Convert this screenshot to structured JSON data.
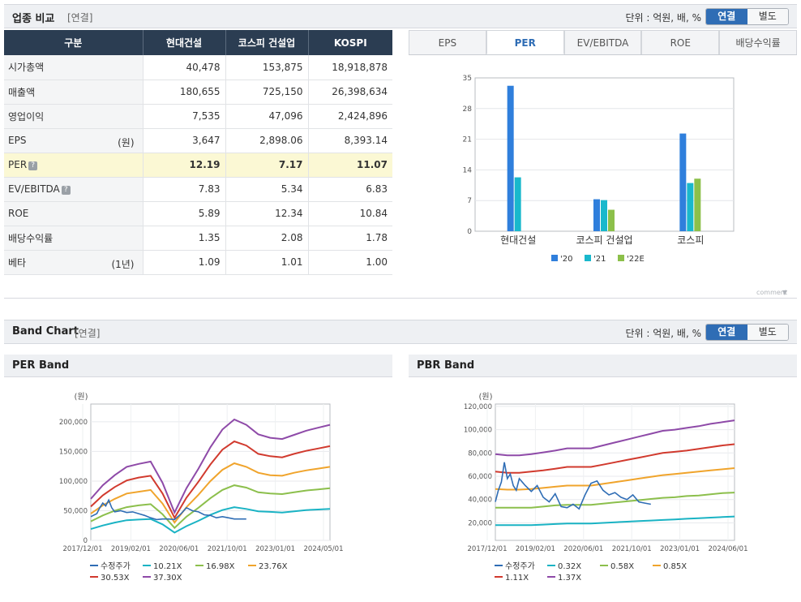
{
  "industry_compare": {
    "title": "업종 비교",
    "tag": "[연결]",
    "unit": "단위 : 억원, 배, %",
    "toggle": [
      "연결",
      "별도"
    ],
    "columns": [
      "구분",
      "현대건설",
      "코스피 건설업",
      "KOSPI"
    ],
    "rows": [
      {
        "label": "시가총액",
        "sub": "",
        "values": [
          "40,478",
          "153,875",
          "18,918,878"
        ]
      },
      {
        "label": "매출액",
        "sub": "",
        "values": [
          "180,655",
          "725,150",
          "26,398,634"
        ]
      },
      {
        "label": "영업이익",
        "sub": "",
        "values": [
          "7,535",
          "47,096",
          "2,424,896"
        ]
      },
      {
        "label": "EPS",
        "sub": "(원)",
        "values": [
          "3,647",
          "2,898.06",
          "8,393.14"
        ]
      },
      {
        "label": "PER",
        "sub": "",
        "values": [
          "12.19",
          "7.17",
          "11.07"
        ]
      },
      {
        "label": "EV/EBITDA",
        "sub": "",
        "values": [
          "7.83",
          "5.34",
          "6.83"
        ]
      },
      {
        "label": "ROE",
        "sub": "",
        "values": [
          "5.89",
          "12.34",
          "10.84"
        ]
      },
      {
        "label": "배당수익률",
        "sub": "",
        "values": [
          "1.35",
          "2.08",
          "1.78"
        ]
      },
      {
        "label": "베타",
        "sub": "(1년)",
        "values": [
          "1.09",
          "1.01",
          "1.00"
        ]
      }
    ],
    "help_icon": "question-icon",
    "tabs": [
      "EPS",
      "PER",
      "EV/EBITDA",
      "ROE",
      "배당수익률"
    ],
    "active_tab": "PER"
  },
  "comment_label": "comment",
  "band": {
    "title": "Band Chart",
    "tag": "[연결]",
    "unit": "단위 : 억원, 배, %",
    "toggle": [
      "연결",
      "별도"
    ],
    "per_title": "PER Band",
    "pbr_title": "PBR Band"
  },
  "colors": {
    "header_dark": "#2b3d52",
    "accent": "#2f6db5",
    "highlight_row": "#fbf8d4",
    "series": [
      "#2f7fdc",
      "#19b8cc",
      "#8cc04a"
    ],
    "band_lines": [
      "#2f6db5",
      "#1ab3c4",
      "#8cbf4c",
      "#f0a42c",
      "#d13a2e",
      "#8e4aa8"
    ]
  },
  "chart_data": [
    {
      "type": "bar",
      "categories": [
        "현대건설",
        "코스피 건설업",
        "코스피"
      ],
      "series": [
        {
          "name": "'20",
          "values": [
            33.2,
            7.3,
            22.3
          ]
        },
        {
          "name": "'21",
          "values": [
            12.3,
            7.1,
            11.0
          ]
        },
        {
          "name": "'22E",
          "values": [
            null,
            4.9,
            12.0
          ]
        }
      ],
      "yticks": [
        0,
        7,
        14,
        21,
        28,
        35
      ],
      "ylim": [
        0,
        35
      ],
      "legend": "bottom"
    },
    {
      "type": "line",
      "title": "PER Band",
      "ylabel": "(원)",
      "yticks": [
        "0",
        "50,000",
        "100,000",
        "150,000",
        "200,000"
      ],
      "ylim": [
        0,
        230000
      ],
      "xlabels": [
        "2017/12/01",
        "2019/02/01",
        "2020/06/01",
        "2021/10/01",
        "2023/01/01",
        "2024/05/01"
      ],
      "x": [
        0,
        4,
        8,
        12,
        16,
        20,
        24,
        28,
        32,
        36,
        40,
        44,
        48,
        52,
        56,
        60,
        64,
        68,
        72,
        76,
        80
      ],
      "band_series": [
        {
          "name": "10.21X",
          "values": [
            19000,
            25000,
            30000,
            34000,
            35000,
            36000,
            27000,
            13000,
            24000,
            33000,
            43000,
            51000,
            56000,
            53000,
            49000,
            48000,
            47000,
            49000,
            51000,
            52000,
            53000
          ]
        },
        {
          "name": "16.98X",
          "values": [
            32000,
            42000,
            50000,
            56000,
            59000,
            61000,
            44000,
            21000,
            40000,
            55000,
            71000,
            85000,
            93000,
            89000,
            81000,
            79000,
            78000,
            81000,
            84000,
            86000,
            88000
          ]
        },
        {
          "name": "23.76X",
          "values": [
            45000,
            59000,
            70000,
            79000,
            82000,
            85000,
            62000,
            30000,
            56000,
            77000,
            100000,
            119000,
            130000,
            124000,
            114000,
            110000,
            109000,
            114000,
            118000,
            121000,
            124000
          ]
        },
        {
          "name": "30.53X",
          "values": [
            57000,
            76000,
            90000,
            101000,
            106000,
            109000,
            79000,
            38000,
            72000,
            99000,
            128000,
            153000,
            167000,
            160000,
            146000,
            142000,
            140000,
            146000,
            151000,
            155000,
            159000
          ]
        },
        {
          "name": "37.30X",
          "values": [
            70000,
            93000,
            110000,
            124000,
            129000,
            133000,
            97000,
            47000,
            88000,
            121000,
            157000,
            187000,
            204000,
            195000,
            179000,
            173000,
            171000,
            178000,
            185000,
            190000,
            195000
          ]
        }
      ],
      "price_series": {
        "name": "수정주가",
        "x": [
          0,
          2,
          3,
          4,
          5,
          6,
          7,
          8,
          10,
          12,
          14,
          16,
          18,
          20,
          22,
          24,
          26,
          28,
          30,
          32,
          34,
          36,
          38,
          40,
          42,
          44,
          46,
          48,
          50,
          52
        ],
        "values": [
          40000,
          45000,
          55000,
          63000,
          58000,
          68000,
          55000,
          48000,
          50000,
          47000,
          48000,
          45000,
          42000,
          38000,
          35000,
          36000,
          36000,
          35000,
          44000,
          55000,
          50000,
          48000,
          43000,
          42000,
          38000,
          40000,
          38000,
          36000,
          36000,
          36000
        ]
      },
      "legend": [
        "수정주가",
        "10.21X",
        "16.98X",
        "23.76X",
        "30.53X",
        "37.30X"
      ]
    },
    {
      "type": "line",
      "title": "PBR Band",
      "ylabel": "(원)",
      "yticks": [
        "20,000",
        "40,000",
        "60,000",
        "80,000",
        "100,000",
        "120,000"
      ],
      "ylim": [
        5000,
        122000
      ],
      "xlabels": [
        "2017/12/01",
        "2019/02/01",
        "2020/06/01",
        "2021/10/01",
        "2023/01/01",
        "2024/06/01"
      ],
      "x": [
        0,
        4,
        8,
        12,
        16,
        20,
        24,
        28,
        32,
        36,
        40,
        44,
        48,
        52,
        56,
        60,
        64,
        68,
        72,
        76,
        80
      ],
      "band_series": [
        {
          "name": "0.32X",
          "values": [
            18000,
            18000,
            18000,
            18000,
            18500,
            19000,
            19500,
            19500,
            19500,
            20000,
            20500,
            21000,
            21500,
            22000,
            22500,
            23000,
            23500,
            24000,
            24500,
            25000,
            25500
          ]
        },
        {
          "name": "0.58X",
          "values": [
            33000,
            33000,
            33000,
            33000,
            34000,
            35000,
            35500,
            35500,
            35500,
            36500,
            37500,
            38500,
            39500,
            40500,
            41500,
            42000,
            43000,
            43500,
            44500,
            45500,
            46000
          ]
        },
        {
          "name": "0.85X",
          "values": [
            49000,
            48500,
            48500,
            49000,
            50000,
            51000,
            52000,
            52000,
            52000,
            53500,
            55000,
            56500,
            58000,
            59500,
            61000,
            62000,
            63000,
            64000,
            65000,
            66000,
            67000
          ]
        },
        {
          "name": "1.11X",
          "values": [
            64000,
            63000,
            63000,
            64000,
            65000,
            66500,
            68000,
            68000,
            68000,
            70000,
            72000,
            74000,
            76000,
            78000,
            80000,
            81000,
            82000,
            83500,
            85000,
            86500,
            87500
          ]
        },
        {
          "name": "1.37X",
          "values": [
            79000,
            78000,
            78000,
            79000,
            80500,
            82000,
            84000,
            84000,
            84000,
            86500,
            89000,
            91500,
            94000,
            96500,
            99000,
            100000,
            101500,
            103000,
            105000,
            106500,
            108000
          ]
        }
      ],
      "price_series": {
        "name": "수정주가",
        "x": [
          0,
          1,
          2,
          3,
          4,
          5,
          6,
          7,
          8,
          9,
          10,
          12,
          14,
          16,
          18,
          20,
          22,
          24,
          26,
          28,
          30,
          32,
          34,
          36,
          38,
          40,
          42,
          44,
          46,
          48,
          50,
          52
        ],
        "values": [
          38000,
          48000,
          55000,
          72000,
          58000,
          62000,
          52000,
          48000,
          58000,
          55000,
          52000,
          47000,
          52000,
          42000,
          38000,
          45000,
          34000,
          33000,
          36000,
          32000,
          44000,
          54000,
          56000,
          48000,
          44000,
          46000,
          42000,
          40000,
          44000,
          38000,
          37000,
          36000
        ]
      },
      "legend": [
        "수정주가",
        "0.32X",
        "0.58X",
        "0.85X",
        "1.11X",
        "1.37X"
      ]
    }
  ]
}
